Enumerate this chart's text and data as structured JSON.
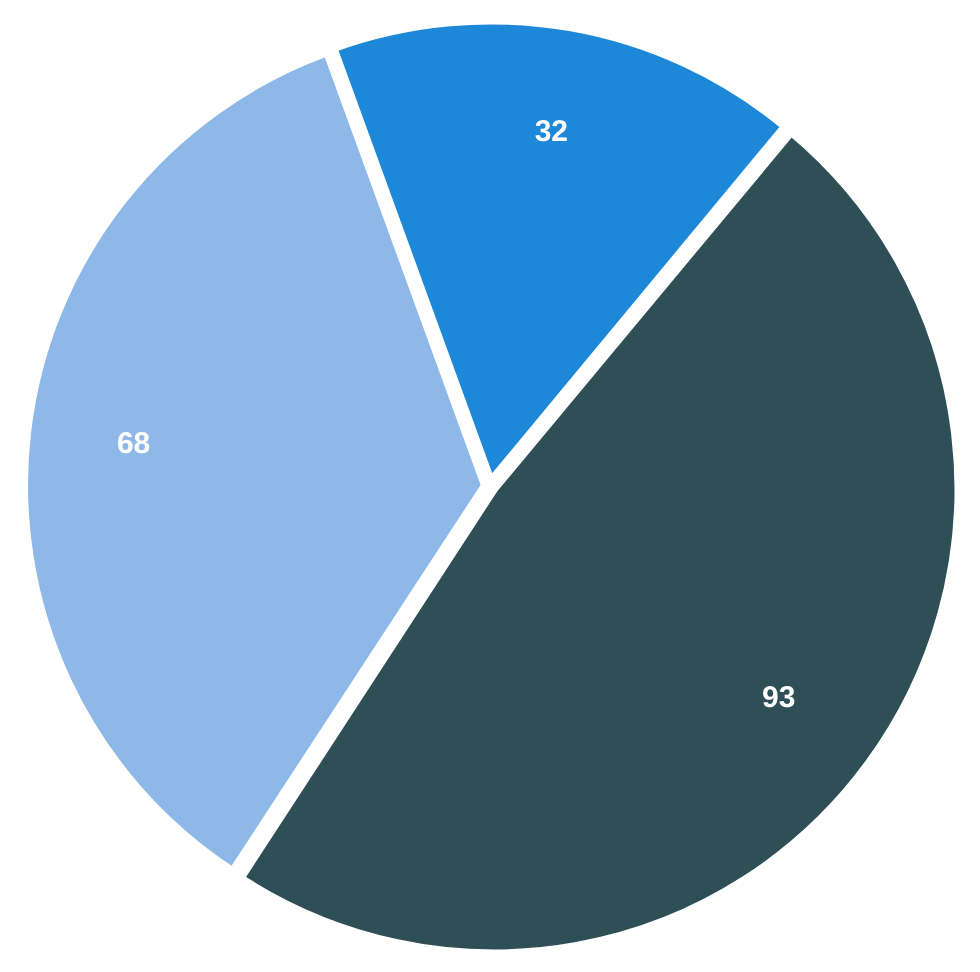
{
  "chart_data": {
    "type": "pie",
    "categories": [
      null,
      null,
      null
    ],
    "values": [
      32,
      93,
      68
    ],
    "colors": [
      "#1e88d8",
      "#2f4f57",
      "#8db8e8"
    ],
    "data_labels": true,
    "legend": false
  }
}
